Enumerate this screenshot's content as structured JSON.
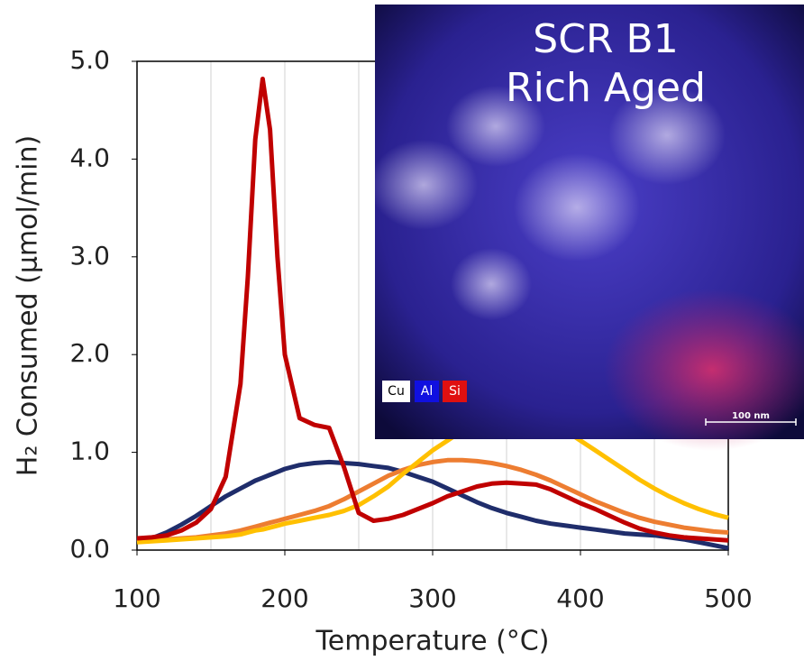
{
  "chart_data": {
    "type": "line",
    "xlabel": "Temperature (°C)",
    "ylabel": "H₂ Consumed (µmol/min)",
    "x": [
      100,
      110,
      120,
      130,
      140,
      150,
      160,
      170,
      175,
      180,
      185,
      190,
      195,
      200,
      210,
      220,
      230,
      240,
      250,
      260,
      270,
      280,
      290,
      300,
      310,
      320,
      330,
      340,
      350,
      360,
      370,
      380,
      390,
      400,
      410,
      420,
      430,
      440,
      450,
      460,
      470,
      480,
      490,
      500
    ],
    "series": [
      {
        "color": "#1f2d6b",
        "values": [
          0.1,
          0.12,
          0.18,
          0.26,
          0.35,
          0.45,
          0.55,
          0.63,
          0.67,
          0.71,
          0.74,
          0.77,
          0.8,
          0.83,
          0.87,
          0.89,
          0.9,
          0.89,
          0.88,
          0.86,
          0.84,
          0.8,
          0.75,
          0.7,
          0.63,
          0.56,
          0.49,
          0.43,
          0.38,
          0.34,
          0.3,
          0.27,
          0.25,
          0.23,
          0.21,
          0.19,
          0.17,
          0.16,
          0.15,
          0.13,
          0.11,
          0.08,
          0.05,
          0.02
        ]
      },
      {
        "color": "#ed7d31",
        "values": [
          0.1,
          0.1,
          0.11,
          0.12,
          0.13,
          0.15,
          0.17,
          0.2,
          0.22,
          0.24,
          0.26,
          0.28,
          0.3,
          0.32,
          0.36,
          0.4,
          0.45,
          0.52,
          0.6,
          0.68,
          0.76,
          0.82,
          0.87,
          0.9,
          0.92,
          0.92,
          0.91,
          0.89,
          0.86,
          0.82,
          0.77,
          0.71,
          0.64,
          0.57,
          0.5,
          0.44,
          0.38,
          0.33,
          0.29,
          0.26,
          0.23,
          0.21,
          0.19,
          0.18
        ]
      },
      {
        "color": "#ffc000",
        "values": [
          0.08,
          0.09,
          0.1,
          0.11,
          0.12,
          0.13,
          0.14,
          0.16,
          0.18,
          0.2,
          0.21,
          0.23,
          0.25,
          0.27,
          0.3,
          0.33,
          0.36,
          0.4,
          0.46,
          0.55,
          0.65,
          0.78,
          0.9,
          1.02,
          1.12,
          1.22,
          1.3,
          1.35,
          1.38,
          1.38,
          1.35,
          1.3,
          1.22,
          1.12,
          1.02,
          0.92,
          0.82,
          0.72,
          0.63,
          0.55,
          0.48,
          0.42,
          0.37,
          0.33
        ]
      },
      {
        "color": "#c00000",
        "values": [
          0.12,
          0.13,
          0.15,
          0.2,
          0.28,
          0.42,
          0.75,
          1.7,
          2.8,
          4.2,
          4.82,
          4.3,
          3.0,
          2.0,
          1.35,
          1.28,
          1.25,
          0.85,
          0.38,
          0.3,
          0.32,
          0.36,
          0.42,
          0.48,
          0.55,
          0.6,
          0.65,
          0.68,
          0.69,
          0.68,
          0.67,
          0.62,
          0.55,
          0.48,
          0.42,
          0.35,
          0.28,
          0.22,
          0.18,
          0.15,
          0.13,
          0.12,
          0.11,
          0.1
        ]
      }
    ],
    "xlim": [
      100,
      500
    ],
    "xticks": [
      100,
      200,
      300,
      400,
      500
    ],
    "xgrid": [
      150,
      200,
      250,
      300,
      350,
      400,
      450
    ],
    "ylim": [
      0,
      5
    ],
    "yticks": [
      {
        "value": 0,
        "label": "0.0"
      },
      {
        "value": 1,
        "label": "1.0"
      },
      {
        "value": 2,
        "label": "2.0"
      },
      {
        "value": 3,
        "label": "3.0"
      },
      {
        "value": 4,
        "label": "4.0"
      },
      {
        "value": 5,
        "label": "5.0"
      }
    ]
  },
  "inset": {
    "title_lines": [
      "SCR B1",
      "Rich Aged"
    ],
    "legend": [
      "Cu",
      "Al",
      "Si"
    ],
    "scale_bar": "100 nm"
  }
}
